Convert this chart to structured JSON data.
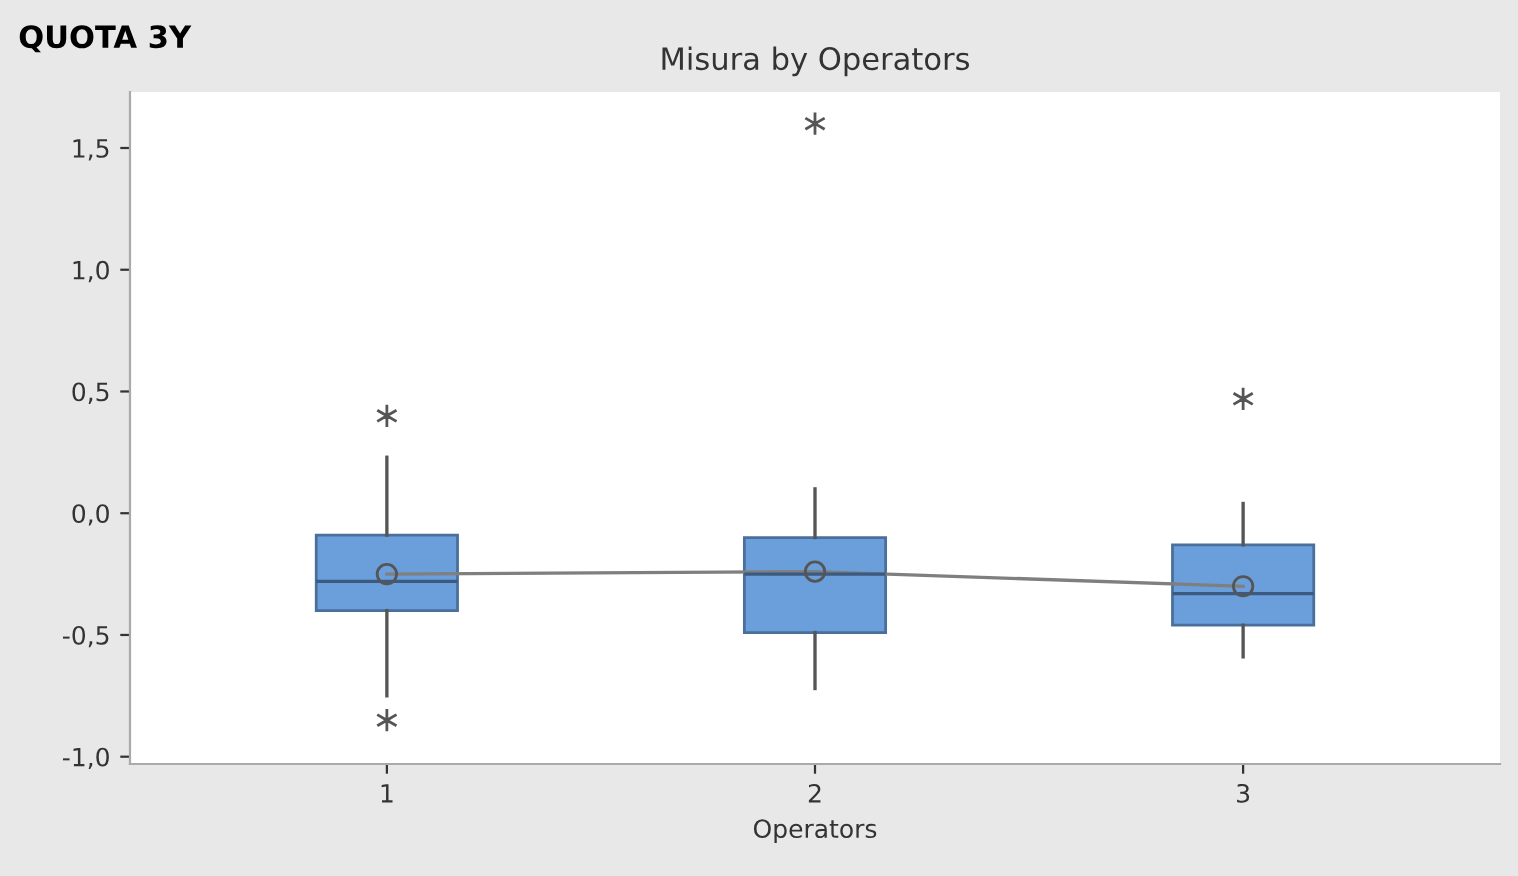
{
  "chart_data": {
    "type": "box",
    "title": "Misura by Operators",
    "xlabel": "Operators",
    "annotations": [
      "QUOTA 3Y"
    ],
    "categories": [
      "1",
      "2",
      "3"
    ],
    "boxes": [
      {
        "low": -0.75,
        "q1": -0.4,
        "median": -0.28,
        "q3": -0.09,
        "high": 0.23,
        "mean": -0.25,
        "outliers": [
          0.4,
          -0.85
        ]
      },
      {
        "low": -0.72,
        "q1": -0.49,
        "median": -0.25,
        "q3": -0.1,
        "high": 0.1,
        "mean": -0.24,
        "outliers": [
          1.6
        ]
      },
      {
        "low": -0.59,
        "q1": -0.46,
        "median": -0.33,
        "q3": -0.13,
        "high": 0.04,
        "mean": -0.3,
        "outliers": [
          0.47
        ]
      }
    ],
    "color": "#6b9fdc",
    "series": [
      {
        "type": "line",
        "color": "#7f7f7f",
        "values": [
          -0.25,
          -0.24,
          -0.3
        ]
      }
    ],
    "ylim": [
      -1.03,
      1.73
    ],
    "yticks": [
      {
        "value": -1.0,
        "label": "-1,0"
      },
      {
        "value": -0.5,
        "label": "-0,5"
      },
      {
        "value": 0.0,
        "label": "0,0"
      },
      {
        "value": 0.5,
        "label": "0,5"
      },
      {
        "value": 1.0,
        "label": "1,0"
      },
      {
        "value": 1.5,
        "label": "1,5"
      }
    ],
    "grid": false,
    "legend": false
  }
}
